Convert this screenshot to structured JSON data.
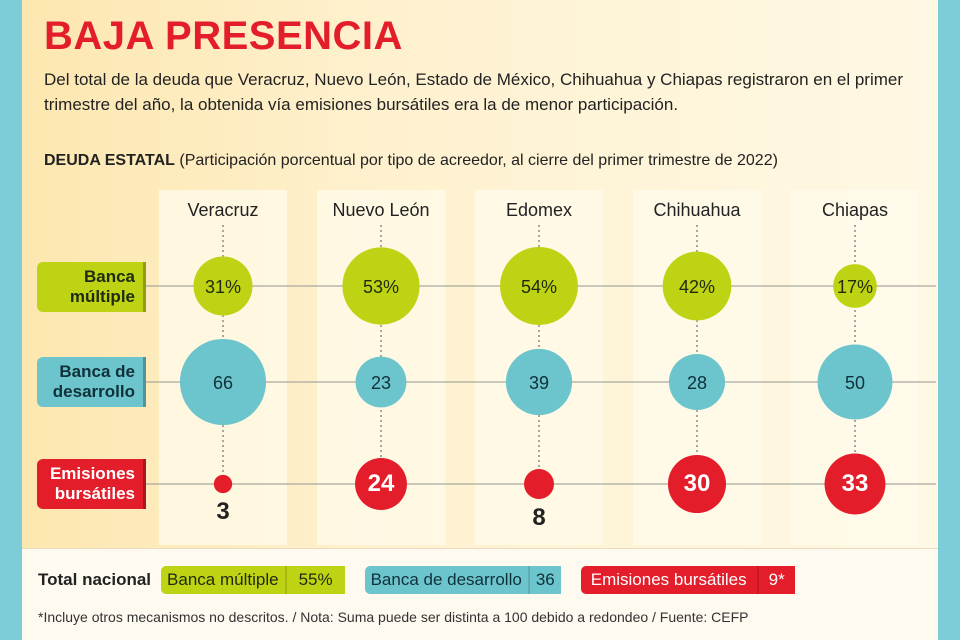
{
  "title": "BAJA PRESENCIA",
  "intro": "Del total de la deuda que Veracruz, Nuevo León, Estado de México, Chihuahua y Chiapas registraron en el primer trimestre del año, la obtenida vía emisiones bursátiles era la de menor participación.",
  "subtitle": {
    "bold": "DEUDA ESTATAL",
    "rest": " (Participación porcentual por tipo de acreedor, al cierre del primer trimestre de 2022)"
  },
  "colors": {
    "banca_multiple": "#bed314",
    "banca_desarrollo": "#6cc5cc",
    "emisiones": "#e31d2a",
    "title": "#e31d2a"
  },
  "chart_data": {
    "type": "bubble",
    "title": "DEUDA ESTATAL",
    "categories": [
      "Veracruz",
      "Nuevo León",
      "Edomex",
      "Chihuahua",
      "Chiapas"
    ],
    "series": [
      {
        "name": "Banca múltiple",
        "label": [
          "Banca",
          "múltiple"
        ],
        "values": [
          31,
          53,
          54,
          42,
          17
        ],
        "suffix": "%"
      },
      {
        "name": "Banca de desarrollo",
        "label": [
          "Banca de",
          "desarrollo"
        ],
        "values": [
          66,
          23,
          39,
          28,
          50
        ],
        "suffix": ""
      },
      {
        "name": "Emisiones bursátiles",
        "label": [
          "Emisiones",
          "bursátiles"
        ],
        "values": [
          3,
          24,
          8,
          30,
          33
        ],
        "suffix": ""
      }
    ]
  },
  "total": {
    "label": "Total nacional",
    "items": [
      {
        "name": "Banca múltiple",
        "value": "55%"
      },
      {
        "name": "Banca de desarrollo",
        "value": "36"
      },
      {
        "name": "Emisiones bursátiles",
        "value": "9*"
      }
    ]
  },
  "footnote": "*Incluye otros mecanismos no descritos.  / Nota: Suma puede ser distinta a 100 debido a redondeo / Fuente: CEFP"
}
